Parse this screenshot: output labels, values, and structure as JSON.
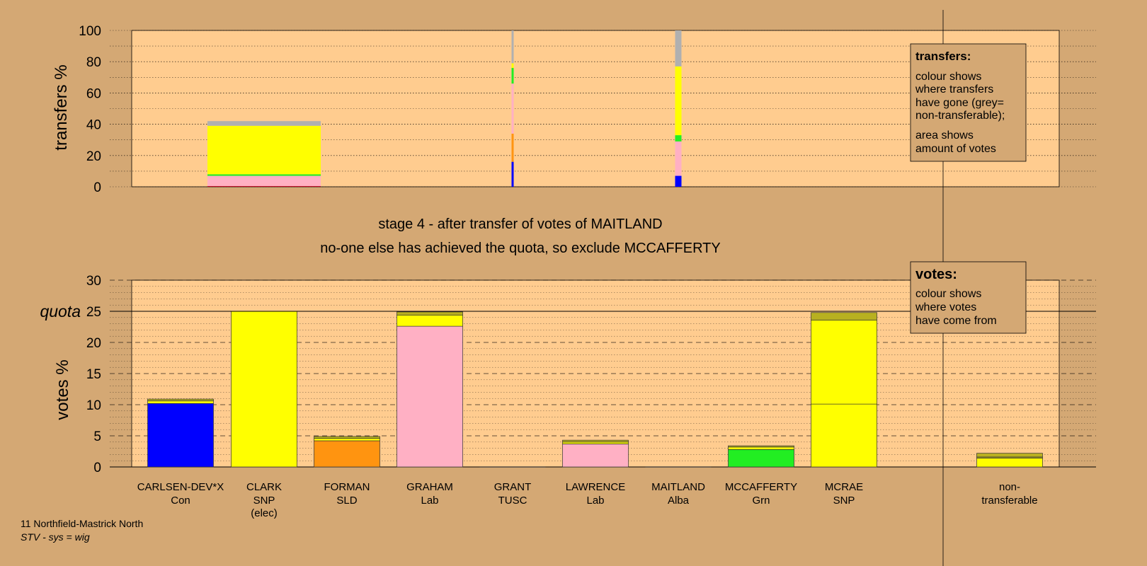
{
  "colors": {
    "page_bg": "#D4A874",
    "plot_bg": "#FFCC8F",
    "Con": "#0000FF",
    "SNP": "#FFFF00",
    "SLD": "#FF9410",
    "Lab": "#FFB0C4",
    "TUSC": "#C0102A",
    "Alba": "#D2B48C",
    "Grn": "#22EE22",
    "olive": "#B8B020",
    "nontransferable": "#B0B0B0"
  },
  "stage": {
    "line1": "stage 4 - after transfer of votes of MAITLAND",
    "line2": "no-one else has achieved the quota, so exclude MCCAFFERTY"
  },
  "legend_transfers": {
    "title": "transfers:",
    "lines_a": [
      "colour shows",
      "where transfers",
      "have gone (grey=",
      "non-transferable);"
    ],
    "lines_b": [
      "area shows",
      "amount of votes"
    ]
  },
  "legend_votes": {
    "title": "votes:",
    "lines": [
      "colour shows",
      "where votes",
      "have come from"
    ]
  },
  "footer": {
    "ward": "11 Northfield-Mastrick North",
    "system": "STV - sys = wig"
  },
  "chart_data": [
    {
      "type": "bar",
      "name": "transfers",
      "ylabel": "transfers %",
      "ylim": [
        0,
        100
      ],
      "yticks": [
        0,
        20,
        40,
        60,
        80,
        100
      ],
      "grid": true,
      "categories": [
        "CARLSEN-DEV*X",
        "CLARK",
        "FORMAN",
        "GRAHAM",
        "GRANT",
        "LAWRENCE",
        "MAITLAND",
        "MCCAFFERTY",
        "MCRAE",
        "non-transferable"
      ],
      "transfer_columns": [
        {
          "from_index": 1,
          "segments": [
            {
              "party": "TUSC",
              "value": 0.5
            },
            {
              "party": "Lab",
              "value": 1.5
            },
            {
              "party": "Lab",
              "value": 5
            },
            {
              "party": "Grn",
              "value": 1
            },
            {
              "party": "SNP",
              "value": 31
            },
            {
              "party": "nontransferable",
              "value": 3
            }
          ]
        },
        {
          "from_index": 4,
          "segments": [
            {
              "party": "Con",
              "value": 16
            },
            {
              "party": "SLD",
              "value": 18
            },
            {
              "party": "Lab",
              "value": 32
            },
            {
              "party": "Grn",
              "value": 10
            },
            {
              "party": "SNP",
              "value": 3
            },
            {
              "party": "nontransferable",
              "value": 21
            }
          ]
        },
        {
          "from_index": 6,
          "segments": [
            {
              "party": "Con",
              "value": 7
            },
            {
              "party": "Lab",
              "value": 22
            },
            {
              "party": "Grn",
              "value": 4
            },
            {
              "party": "SNP",
              "value": 44
            },
            {
              "party": "nontransferable",
              "value": 23
            }
          ]
        }
      ]
    },
    {
      "type": "bar",
      "name": "votes",
      "ylabel": "votes %",
      "ylim": [
        0,
        30
      ],
      "yticks": [
        0,
        5,
        10,
        15,
        20,
        25,
        30
      ],
      "quota": 25,
      "quota_label": "quota",
      "grid": true,
      "candidates": [
        {
          "name": "CARLSEN-DEV*X",
          "party": "Con",
          "extra": "",
          "segments": [
            {
              "party": "Con",
              "value": 10.2
            },
            {
              "party": "SNP",
              "value": 0.4
            },
            {
              "party": "olive",
              "value": 0.3
            }
          ]
        },
        {
          "name": "CLARK",
          "party": "SNP",
          "extra": "(elec)",
          "segments": [
            {
              "party": "SNP",
              "value": 25.0
            }
          ]
        },
        {
          "name": "FORMAN",
          "party": "SLD",
          "extra": "",
          "segments": [
            {
              "party": "SLD",
              "value": 4.2
            },
            {
              "party": "SNP",
              "value": 0.4
            },
            {
              "party": "olive",
              "value": 0.3
            }
          ]
        },
        {
          "name": "GRAHAM",
          "party": "Lab",
          "extra": "",
          "segments": [
            {
              "party": "Lab",
              "value": 22.6
            },
            {
              "party": "SNP",
              "value": 1.8
            },
            {
              "party": "olive",
              "value": 0.5
            }
          ]
        },
        {
          "name": "GRANT",
          "party": "TUSC",
          "extra": "",
          "segments": []
        },
        {
          "name": "LAWRENCE",
          "party": "Lab",
          "extra": "",
          "segments": [
            {
              "party": "Lab",
              "value": 3.7
            },
            {
              "party": "SNP",
              "value": 0.3
            },
            {
              "party": "olive",
              "value": 0.3
            }
          ]
        },
        {
          "name": "MAITLAND",
          "party": "Alba",
          "extra": "",
          "segments": []
        },
        {
          "name": "MCCAFFERTY",
          "party": "Grn",
          "extra": "",
          "segments": [
            {
              "party": "Grn",
              "value": 2.8
            },
            {
              "party": "SNP",
              "value": 0.4
            },
            {
              "party": "olive",
              "value": 0.2
            }
          ]
        },
        {
          "name": "MCRAE",
          "party": "SNP",
          "extra": "",
          "segments": [
            {
              "party": "SNP",
              "value": 10.1
            },
            {
              "party": "SNP",
              "value": 13.5
            },
            {
              "party": "olive",
              "value": 1.2
            }
          ]
        },
        {
          "name": "non-",
          "party": "transferable",
          "extra": "",
          "segments": [
            {
              "party": "SNP",
              "value": 1.4
            },
            {
              "party": "olive",
              "value": 0.2
            },
            {
              "party": "olive",
              "value": 0.6
            }
          ]
        }
      ]
    }
  ]
}
